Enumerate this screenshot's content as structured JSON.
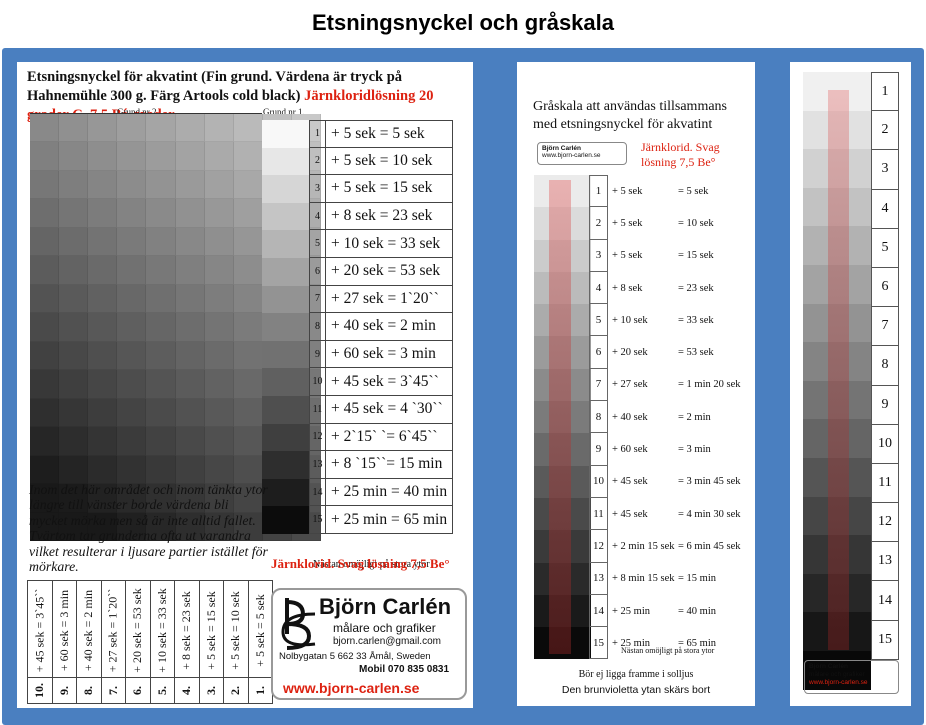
{
  "title": "Etsningsnyckel och gråskala",
  "card1": {
    "heading_black": "Etsningsnyckel för akvatint (Fin grund. Värdena är tryck på Hahnemühle 300 g. Färg Artools cold black)",
    "heading_red": "Järnkloridlösning 20 grader C.   7,5 Bé-grader",
    "grund2": "Grund nr 2.",
    "grund1": "Grund nr 1.",
    "steps": [
      {
        "n": "1",
        "t": "+ 5 sek  = 5 sek"
      },
      {
        "n": "2",
        "t": "+ 5 sek  = 10 sek"
      },
      {
        "n": "3",
        "t": "+ 5 sek  = 15 sek"
      },
      {
        "n": "4",
        "t": "+ 8 sek  = 23 sek"
      },
      {
        "n": "5",
        "t": "+ 10 sek = 33 sek"
      },
      {
        "n": "6",
        "t": "+ 20 sek = 53 sek"
      },
      {
        "n": "7",
        "t": "+ 27 sek = 1`20``"
      },
      {
        "n": "8",
        "t": "+ 40 sek = 2 min"
      },
      {
        "n": "9",
        "t": "+ 60 sek = 3 min"
      },
      {
        "n": "10",
        "t": "+ 45 sek = 3`45``"
      },
      {
        "n": "11",
        "t": "+ 45 sek = 4 `30``"
      },
      {
        "n": "12",
        "t": "+ 2`15` `= 6`45``"
      },
      {
        "n": "13",
        "t": "+ 8 `15``= 15 min"
      },
      {
        "n": "14",
        "t": "+ 25 min = 40 min"
      },
      {
        "n": "15",
        "t": "+ 25 min = 65 min"
      }
    ],
    "italic_text": "Inom det här området och inom tänkta ytor längre till vänster borde värdena bli mycket mörka men så är inte alltid fallet. Tvärtom tar grunderna ofta ut varandra vilket resulterar i ljusare partier istället för mörkare.",
    "nastan": "Nästan omöjligt på stora ytor",
    "jarnklorid": "Järnklorid. Svag lösning 7,5 Be°",
    "vertical": [
      {
        "n": "10.",
        "t": "+ 45 sek = 3`45``"
      },
      {
        "n": "9.",
        "t": "+ 60 sek = 3 min"
      },
      {
        "n": "8.",
        "t": "+ 40 sek = 2 min"
      },
      {
        "n": "7.",
        "t": "+ 27 sek = 1`20``"
      },
      {
        "n": "6.",
        "t": "+ 20 sek = 53 sek"
      },
      {
        "n": "5.",
        "t": "+ 10 sek = 33 sek"
      },
      {
        "n": "4.",
        "t": "+ 8 sek = 23 sek"
      },
      {
        "n": "3.",
        "t": "+ 5 sek = 15 sek"
      },
      {
        "n": "2.",
        "t": "+ 5 sek = 10 sek"
      },
      {
        "n": "1.",
        "t": "+ 5 sek = 5 sek"
      }
    ],
    "logo": {
      "name": "Björn Carlén",
      "sub": "målare och grafiker",
      "email": "bjorn.carlen@gmail.com",
      "address": "Nolbygatan 5   662 33  Åmål, Sweden",
      "mobile": "Mobil  070 835 0831",
      "www": "www.bjorn-carlen.se"
    }
  },
  "card2": {
    "heading_line1": "Gråskala  att användas tillsammans",
    "heading_line2": "med etsningsnyckel för akvatint",
    "red_line1": "Järnklorid. Svag",
    "red_line2": "lösning 7,5 Be°",
    "mini_logo": "Björn Carlén",
    "mini_www": "www.bjorn-carlen.se",
    "rows": [
      {
        "n": "1",
        "a": "+ 5 sek",
        "b": "= 5 sek"
      },
      {
        "n": "2",
        "a": "+ 5 sek",
        "b": "= 10 sek"
      },
      {
        "n": "3",
        "a": "+ 5 sek",
        "b": "= 15 sek"
      },
      {
        "n": "4",
        "a": "+ 8 sek",
        "b": "= 23 sek"
      },
      {
        "n": "5",
        "a": "+ 10 sek",
        "b": "= 33 sek"
      },
      {
        "n": "6",
        "a": "+ 20 sek",
        "b": "= 53 sek"
      },
      {
        "n": "7",
        "a": "+ 27 sek",
        "b": "= 1 min 20 sek"
      },
      {
        "n": "8",
        "a": "+ 40 sek",
        "b": "= 2 min"
      },
      {
        "n": "9",
        "a": "+ 60 sek",
        "b": "= 3 min"
      },
      {
        "n": "10",
        "a": "+ 45 sek",
        "b": "= 3 min 45 sek"
      },
      {
        "n": "11",
        "a": "+ 45 sek",
        "b": "= 4 min 30 sek"
      },
      {
        "n": "12",
        "a": "+ 2 min 15 sek",
        "b": "= 6 min 45 sek"
      },
      {
        "n": "13",
        "a": "+ 8 min 15 sek",
        "b": "= 15 min"
      },
      {
        "n": "14",
        "a": "+ 25 min",
        "b": "= 40 min"
      },
      {
        "n": "15",
        "a": "+ 25 min",
        "b": "= 65 min"
      }
    ],
    "nastan": "Nästan omöjligt på stora ytor",
    "footer1": "Bör ej ligga framme i solljus",
    "footer2": "Den brunvioletta ytan skärs bort"
  },
  "card3": {
    "numbers": [
      "1",
      "2",
      "3",
      "4",
      "5",
      "6",
      "7",
      "8",
      "9",
      "10",
      "11",
      "12",
      "13",
      "14",
      "15"
    ],
    "mini_logo": "Björn Carlén",
    "mini_sub": "målare och grafiker",
    "mini_www": "www.bjorn-carlen.se"
  },
  "colors": {
    "frame": "#4a7fc0",
    "red": "#dd2211"
  }
}
